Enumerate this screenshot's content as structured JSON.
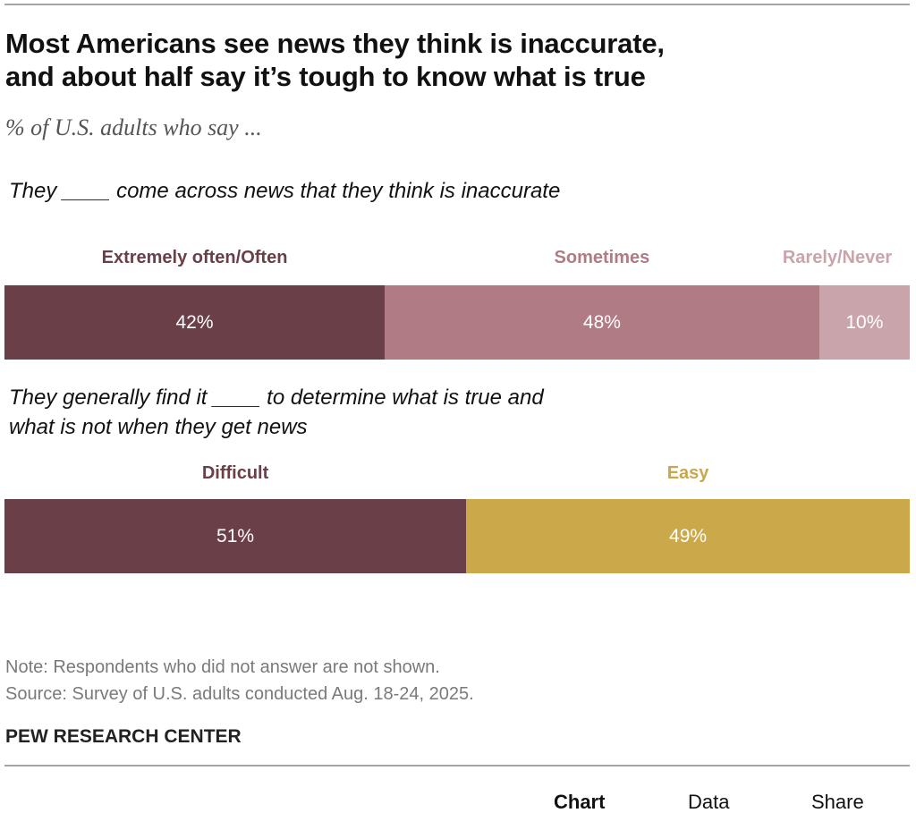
{
  "chart_data": [
    {
      "type": "bar",
      "orientation": "horizontal-stacked-100",
      "title": "Most Americans see news they think is inaccurate, and about half say it’s tough to know what is true",
      "subtitle": "% of U.S. adults who say ...",
      "question": "They ____ come across news that they think is inaccurate",
      "categories": [
        "Extremely often/Often",
        "Sometimes",
        "Rarely/Never"
      ],
      "values": [
        42,
        48,
        10
      ],
      "value_labels": [
        "42%",
        "48%",
        "10%"
      ],
      "colors": [
        "#6a3f48",
        "#b17b84",
        "#c9a5ab"
      ],
      "label_colors": [
        "#6a3f48",
        "#b17b84",
        "#c9a5ab"
      ],
      "xlim": [
        0,
        100
      ]
    },
    {
      "type": "bar",
      "orientation": "horizontal-stacked-100",
      "question": "They generally find it ____ to determine what is true and what is not when they get news",
      "categories": [
        "Difficult",
        "Easy"
      ],
      "values": [
        51,
        49
      ],
      "value_labels": [
        "51%",
        "49%"
      ],
      "colors": [
        "#6a3f48",
        "#cba94b"
      ],
      "label_colors": [
        "#6a3f48",
        "#c9a84a"
      ],
      "xlim": [
        0,
        100
      ]
    }
  ],
  "header": {
    "title_line1": "Most Americans see news they think is inaccurate,",
    "title_line2": "and about half say it’s tough to know what is true",
    "subtitle": "% of U.S. adults who say ..."
  },
  "questions": {
    "q1": "They ____ come across news that they think is inaccurate",
    "q2_line1": "They generally find it ____ to determine what is true and",
    "q2_line2": "what is not when they get news"
  },
  "notes": {
    "note": "Note: Respondents who did not answer are not shown.",
    "source": "Source: Survey of U.S. adults conducted Aug. 18-24, 2025.",
    "brand": "PEW RESEARCH CENTER"
  },
  "footer": {
    "chart": "Chart",
    "data": "Data",
    "share": "Share"
  }
}
